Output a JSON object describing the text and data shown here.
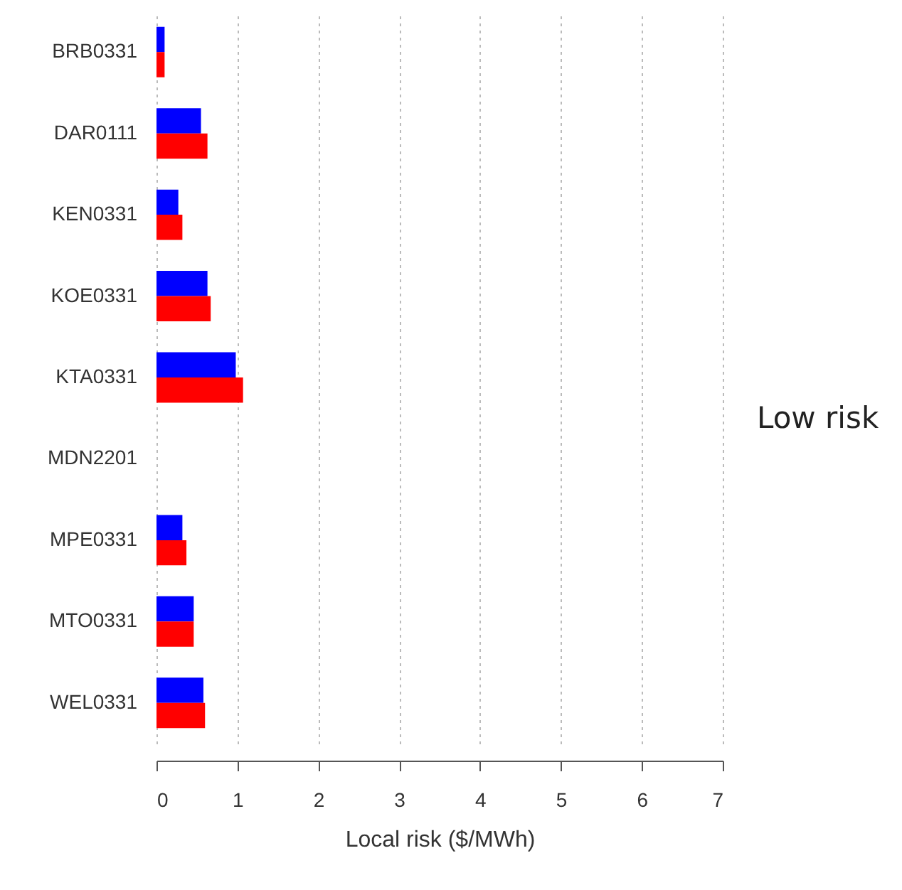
{
  "chart_data": {
    "type": "bar",
    "orientation": "horizontal",
    "xlabel": "Local risk ($/MWh)",
    "categories": [
      "BRB0331",
      "DAR0111",
      "KEN0331",
      "KOE0331",
      "KTA0331",
      "MDN2201",
      "MPE0331",
      "MTO0331",
      "WEL0331"
    ],
    "series": [
      {
        "color": "#0000ff",
        "values": [
          0.1,
          0.55,
          0.27,
          0.63,
          0.98,
          null,
          0.32,
          0.46,
          0.58
        ]
      },
      {
        "color": "#ff0000",
        "values": [
          0.1,
          0.63,
          0.32,
          0.67,
          1.07,
          null,
          0.37,
          0.46,
          0.6
        ]
      }
    ],
    "xlim": [
      0,
      7
    ],
    "xticks": [
      0,
      1,
      2,
      3,
      4,
      5,
      6,
      7
    ],
    "grid": "x",
    "annotations": [
      "Low risk"
    ]
  }
}
